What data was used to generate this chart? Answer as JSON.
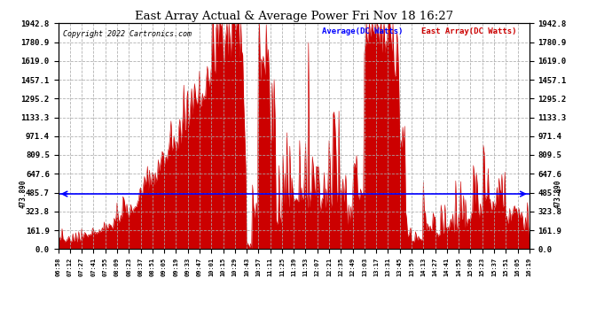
{
  "title": "East Array Actual & Average Power Fri Nov 18 16:27",
  "copyright": "Copyright 2022 Cartronics.com",
  "legend_avg": "Average(DC Watts)",
  "legend_east": "East Array(DC Watts)",
  "avg_value": 473.89,
  "ymax": 1942.8,
  "yticks": [
    0.0,
    161.9,
    323.8,
    485.7,
    647.6,
    809.5,
    971.4,
    1133.3,
    1295.2,
    1457.1,
    1619.0,
    1780.9,
    1942.8
  ],
  "background_color": "#ffffff",
  "fill_color": "#cc0000",
  "avg_line_color": "#0000ff",
  "grid_color": "#aaaaaa",
  "title_color": "#000000",
  "avg_label": "473.890",
  "x_times": [
    "06:58",
    "07:12",
    "07:27",
    "07:41",
    "07:55",
    "08:09",
    "08:23",
    "08:37",
    "08:51",
    "09:05",
    "09:19",
    "09:33",
    "09:47",
    "10:01",
    "10:15",
    "10:29",
    "10:43",
    "10:57",
    "11:11",
    "11:25",
    "11:39",
    "11:53",
    "12:07",
    "12:21",
    "12:35",
    "12:49",
    "13:03",
    "13:17",
    "13:31",
    "13:45",
    "13:59",
    "14:13",
    "14:27",
    "14:41",
    "14:55",
    "15:09",
    "15:23",
    "15:37",
    "15:51",
    "16:05",
    "16:19"
  ]
}
